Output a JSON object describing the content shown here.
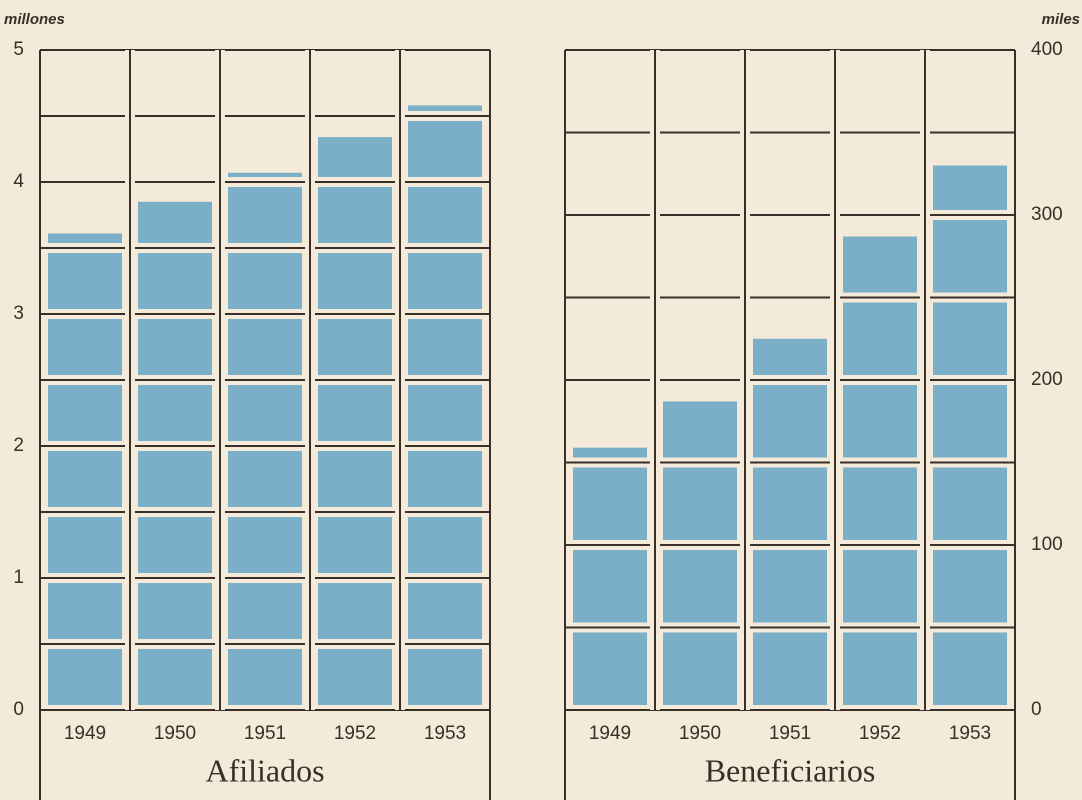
{
  "chart_data": [
    {
      "type": "bar",
      "title": "Afiliados",
      "y_label": "millones",
      "axis_side": "left",
      "categories": [
        "1949",
        "1950",
        "1951",
        "1952",
        "1953"
      ],
      "values": [
        3.61,
        3.85,
        4.07,
        4.34,
        4.58
      ],
      "color": "#7aafc7",
      "ylim": [
        0,
        5
      ],
      "yticks": [
        0,
        1,
        2,
        3,
        4,
        5
      ],
      "grid": true
    },
    {
      "type": "bar",
      "title": "Beneficiarios",
      "y_label": "miles",
      "axis_side": "right",
      "categories": [
        "1949",
        "1950",
        "1951",
        "1952",
        "1953"
      ],
      "values": [
        159,
        187,
        225,
        287,
        330
      ],
      "color": "#7aafc7",
      "ylim": [
        0,
        400
      ],
      "yticks": [
        0,
        100,
        200,
        300,
        400
      ],
      "grid": true
    }
  ]
}
